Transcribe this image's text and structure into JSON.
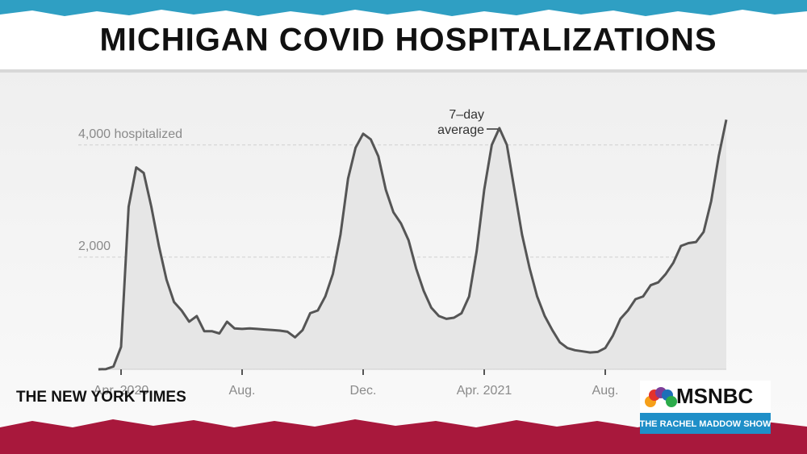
{
  "title": "MICHIGAN COVID HOSPITALIZATIONS",
  "source": "THE NEW YORK TIMES",
  "logo": {
    "network": "MSNBC",
    "show": "THE RACHEL MADDOW SHOW"
  },
  "chart_data": {
    "type": "line",
    "categories": [
      null,
      null,
      null,
      "Apr. 2020",
      null,
      null,
      null,
      null,
      null,
      null,
      null,
      null,
      null,
      null,
      null,
      null,
      null,
      null,
      null,
      "Aug.",
      null,
      null,
      null,
      null,
      null,
      null,
      null,
      null,
      null,
      null,
      null,
      null,
      null,
      null,
      null,
      "Dec.",
      null,
      null,
      null,
      null,
      null,
      null,
      null,
      null,
      null,
      null,
      null,
      null,
      null,
      null,
      null,
      "Apr. 2021",
      null,
      null,
      null,
      null,
      null,
      null,
      null,
      null,
      null,
      null,
      null,
      null,
      null,
      null,
      null,
      "Aug.",
      null,
      null,
      null,
      null,
      null,
      null,
      null,
      null,
      null,
      null,
      null,
      null,
      null,
      null,
      null,
      null
    ],
    "values": [
      0,
      5,
      50,
      400,
      2900,
      3600,
      3500,
      2900,
      2200,
      1600,
      1200,
      1050,
      850,
      950,
      680,
      680,
      640,
      850,
      730,
      720,
      730,
      720,
      710,
      700,
      690,
      670,
      570,
      700,
      1000,
      1050,
      1300,
      1700,
      2400,
      3400,
      3950,
      4200,
      4100,
      3800,
      3200,
      2800,
      2600,
      2300,
      1800,
      1400,
      1100,
      950,
      900,
      920,
      1000,
      1300,
      2100,
      3200,
      4000,
      4300,
      4000,
      3200,
      2400,
      1800,
      1300,
      950,
      700,
      480,
      380,
      340,
      320,
      300,
      310,
      380,
      600,
      900,
      1050,
      1250,
      1300,
      1500,
      1550,
      1700,
      1900,
      2200,
      2250,
      2270,
      2450,
      3000,
      3800,
      4450
    ],
    "color": "#555555",
    "ylim": [
      0,
      4600
    ],
    "yticks": [
      {
        "value": 2000,
        "label": "2,000"
      },
      {
        "value": 4000,
        "label": "4,000 hospitalized"
      }
    ],
    "grid": true,
    "annotation": [
      "7–day",
      "average"
    ]
  }
}
